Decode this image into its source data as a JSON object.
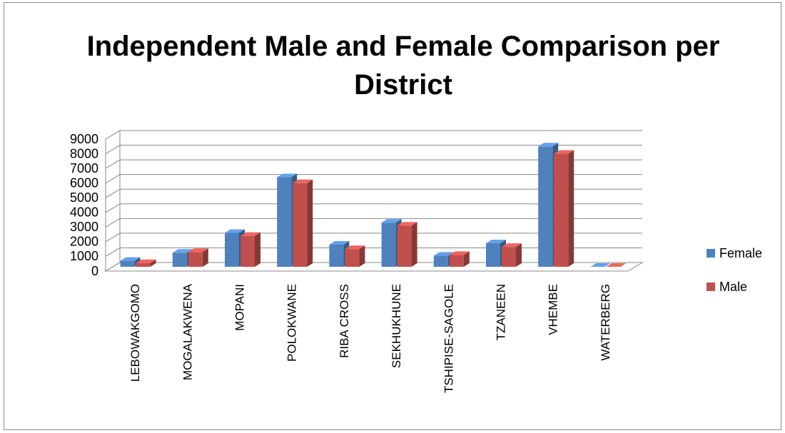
{
  "chart_data": {
    "type": "bar3d",
    "title": "Independent Male and Female Comparison per District",
    "categories": [
      "LEBOWAKGOMO",
      "MOGALAKWENA",
      "MOPANI",
      "POLOKWANE",
      "RIBA CROSS",
      "SEKHUKHUNE",
      "TSHIPISE-SAGOLE",
      "TZANEEN",
      "VHEMBE",
      "WATERBERG"
    ],
    "series": [
      {
        "name": "Female",
        "color": "#4f81bd",
        "values": [
          700,
          1250,
          2600,
          6400,
          1800,
          3300,
          1050,
          1900,
          8500,
          200
        ]
      },
      {
        "name": "Male",
        "color": "#c0504d",
        "values": [
          550,
          1300,
          2400,
          6000,
          1500,
          3100,
          1100,
          1650,
          8000,
          150
        ]
      }
    ],
    "ylim": [
      0,
      9000
    ],
    "yticks": [
      0,
      1000,
      2000,
      3000,
      4000,
      5000,
      6000,
      7000,
      8000,
      9000
    ],
    "grid": true,
    "legend": "right"
  }
}
